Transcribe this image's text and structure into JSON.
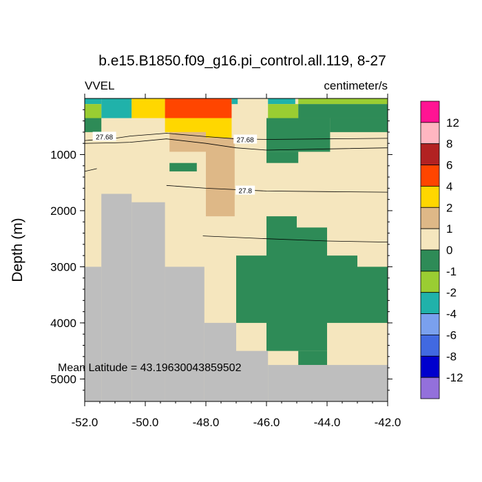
{
  "chart_data": {
    "type": "heatmap",
    "title": "b.e15.B1850.f09_g16.pi_control.all.119, 8-27",
    "left_string": "VVEL",
    "right_string": "centimeter/s",
    "ylabel": "Depth (m)",
    "xlabel": "",
    "xlim": [
      -52.0,
      -42.0
    ],
    "ylim": [
      5400,
      0
    ],
    "x_ticks": [
      "-52.0",
      "-50.0",
      "-48.0",
      "-46.0",
      "-44.0",
      "-42.0"
    ],
    "y_ticks": [
      "1000",
      "2000",
      "3000",
      "4000",
      "5000"
    ],
    "annotation": "Mean Latitude = 43.19630043859502",
    "missing_color": "#bebebe",
    "colorbar": {
      "labels": [
        "12",
        "8",
        "6",
        "4",
        "2",
        "1",
        "0",
        "-1",
        "-2",
        "-4",
        "-6",
        "-8",
        "-12"
      ],
      "colors": [
        "#ff1493",
        "#ffb6c1",
        "#b22222",
        "#ff4500",
        "#ffd700",
        "#deb887",
        "#f5e6be",
        "#2e8b57",
        "#9acd32",
        "#20b2aa",
        "#7aa0ee",
        "#4169e1",
        "#0000cd",
        "#9370db"
      ]
    },
    "cells": [
      {
        "x": [
          -52.0,
          -51.45
        ],
        "y": [
          0,
          100
        ],
        "value": "-2"
      },
      {
        "x": [
          -51.45,
          -50.45
        ],
        "y": [
          0,
          350
        ],
        "value": "-2"
      },
      {
        "x": [
          -52.0,
          -51.45
        ],
        "y": [
          100,
          350
        ],
        "value": "-1"
      },
      {
        "x": [
          -52.0,
          -51.45
        ],
        "y": [
          350,
          600
        ],
        "value": "-1 (strong)"
      },
      {
        "x": [
          -50.45,
          -49.35
        ],
        "y": [
          0,
          350
        ],
        "value": "2"
      },
      {
        "x": [
          -49.35,
          -47.15
        ],
        "y": [
          0,
          350
        ],
        "value": "4"
      },
      {
        "x": [
          -49.35,
          -48.0
        ],
        "y": [
          350,
          600
        ],
        "value": "2"
      },
      {
        "x": [
          -48.0,
          -47.15
        ],
        "y": [
          350,
          700
        ],
        "value": "2"
      },
      {
        "x": [
          -47.15,
          -46.95
        ],
        "y": [
          0,
          100
        ],
        "value": "-2"
      },
      {
        "x": [
          -45.95,
          -45.05
        ],
        "y": [
          0,
          100
        ],
        "value": "-2"
      },
      {
        "x": [
          -45.95,
          -44.95
        ],
        "y": [
          100,
          350
        ],
        "value": "-1"
      },
      {
        "x": [
          -44.95,
          -42.0
        ],
        "y": [
          0,
          100
        ],
        "value": "-1"
      },
      {
        "x": [
          -44.95,
          -42.0
        ],
        "y": [
          100,
          350
        ],
        "value": "-1 (strong)"
      },
      {
        "x": [
          -46.0,
          -43.9
        ],
        "y": [
          350,
          950
        ],
        "value": "-1 (strong)"
      },
      {
        "x": [
          -43.9,
          -42.0
        ],
        "y": [
          350,
          600
        ],
        "value": "-1 (strong)"
      },
      {
        "x": [
          -43.0,
          -42.0
        ],
        "y": [
          600,
          600
        ],
        "value": "-1 (strong)"
      },
      {
        "x": [
          -46.0,
          -44.95
        ],
        "y": [
          950,
          1150
        ],
        "value": "-1 (strong)"
      },
      {
        "x": [
          -48.0,
          -47.05
        ],
        "y": [
          700,
          2100
        ],
        "value": "1"
      },
      {
        "x": [
          -49.2,
          -48.0
        ],
        "y": [
          600,
          950
        ],
        "value": "1"
      },
      {
        "x": [
          -49.2,
          -48.3
        ],
        "y": [
          1150,
          1300
        ],
        "value": "-1 (strong)"
      },
      {
        "x": [
          -46.0,
          -45.0
        ],
        "y": [
          2100,
          4500
        ],
        "value": "-1 (strong)"
      },
      {
        "x": [
          -45.0,
          -44.0
        ],
        "y": [
          2300,
          4500
        ],
        "value": "-1 (strong)"
      },
      {
        "x": [
          -44.0,
          -43.0
        ],
        "y": [
          2800,
          4000
        ],
        "value": "-1 (strong)"
      },
      {
        "x": [
          -43.0,
          -42.0
        ],
        "y": [
          3000,
          4000
        ],
        "value": "-1 (strong)"
      },
      {
        "x": [
          -47.0,
          -46.0
        ],
        "y": [
          2800,
          4000
        ],
        "value": "-1 (strong)"
      },
      {
        "x": [
          -44.95,
          -44.0
        ],
        "y": [
          4500,
          4750
        ],
        "value": "-1 (strong)"
      }
    ],
    "bathymetry": [
      {
        "x": [
          -52.0,
          -51.45
        ],
        "depth": 3000
      },
      {
        "x": [
          -51.45,
          -50.45
        ],
        "depth": 1700
      },
      {
        "x": [
          -50.45,
          -49.35
        ],
        "depth": 1850
      },
      {
        "x": [
          -49.35,
          -48.05
        ],
        "depth": 3000
      },
      {
        "x": [
          -48.05,
          -47.0
        ],
        "depth": 4000
      },
      {
        "x": [
          -47.0,
          -45.95
        ],
        "depth": 4500
      },
      {
        "x": [
          -45.95,
          -42.0
        ],
        "depth": 4750
      }
    ],
    "contours": [
      {
        "label": "27.68",
        "points": [
          [
            -52.0,
            750
          ],
          [
            -51.0,
            710
          ],
          [
            -50.5,
            670
          ],
          [
            -49.3,
            620
          ],
          [
            -48.0,
            680
          ],
          [
            -47.0,
            720
          ],
          [
            -46.0,
            730
          ],
          [
            -44.0,
            720
          ],
          [
            -42.0,
            710
          ]
        ]
      },
      {
        "label": "",
        "points": [
          [
            -52.0,
            800
          ],
          [
            -51.0,
            790
          ],
          [
            -50.5,
            780
          ],
          [
            -49.3,
            720
          ],
          [
            -48.0,
            800
          ],
          [
            -47.0,
            880
          ],
          [
            -46.0,
            920
          ],
          [
            -44.0,
            900
          ],
          [
            -42.0,
            880
          ]
        ]
      },
      {
        "label": "",
        "points": [
          [
            -52.0,
            1300
          ],
          [
            -51.6,
            1250
          ]
        ]
      },
      {
        "label": "27.8",
        "points": [
          [
            -49.3,
            1550
          ],
          [
            -48.0,
            1600
          ],
          [
            -46.0,
            1650
          ],
          [
            -44.0,
            1660
          ],
          [
            -42.0,
            1670
          ]
        ]
      },
      {
        "label": "",
        "points": [
          [
            -48.1,
            2450
          ],
          [
            -46.0,
            2500
          ],
          [
            -44.0,
            2540
          ],
          [
            -42.0,
            2560
          ]
        ]
      }
    ],
    "contour_labels": [
      {
        "text": "27.68",
        "x": -51.35,
        "y": 680
      },
      {
        "text": "27.68",
        "x": -46.7,
        "y": 730
      },
      {
        "text": "27.8",
        "x": -46.7,
        "y": 1640
      }
    ]
  }
}
